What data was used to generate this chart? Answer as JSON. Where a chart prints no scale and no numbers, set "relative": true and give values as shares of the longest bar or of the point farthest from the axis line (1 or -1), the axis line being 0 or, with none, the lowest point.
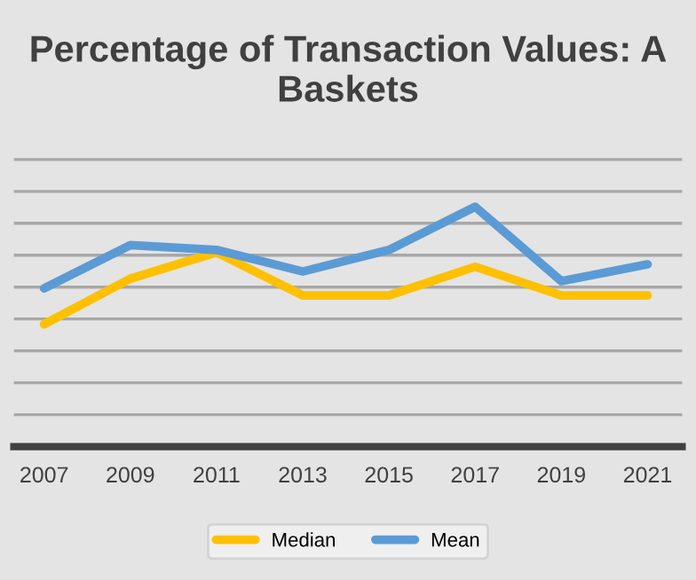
{
  "chart_data": {
    "type": "line",
    "title": "Percentage of Transaction Values: A\nBaskets",
    "categories": [
      "2007",
      "2009",
      "2011",
      "2013",
      "2015",
      "2017",
      "2019",
      "2021"
    ],
    "relative": true,
    "grid": "y",
    "legend": "bottom",
    "marker": "none",
    "line_style": "solid",
    "series": [
      {
        "name": "Median",
        "color": "#ffc000",
        "values": [
          0.51,
          0.7,
          0.81,
          0.63,
          0.63,
          0.75,
          0.63,
          0.63
        ]
      },
      {
        "name": "Mean",
        "color": "#5b9bd5",
        "values": [
          0.66,
          0.84,
          0.82,
          0.73,
          0.82,
          1,
          0.69,
          0.76
        ]
      }
    ]
  }
}
